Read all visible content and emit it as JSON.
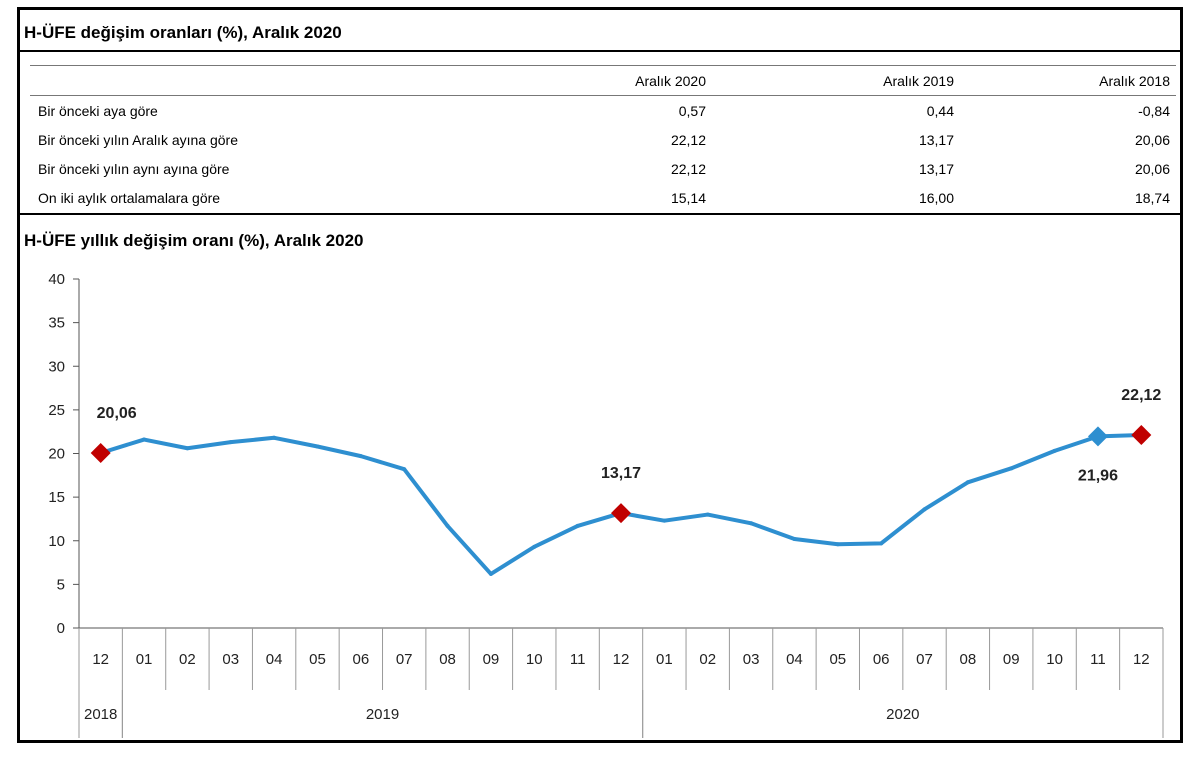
{
  "table": {
    "title": "H-ÜFE değişim oranları (%), Aralık 2020",
    "columns": [
      "Aralık 2020",
      "Aralık 2019",
      "Aralık 2018"
    ],
    "rows": [
      {
        "label": "Bir önceki aya göre",
        "values": [
          "0,57",
          "0,44",
          "-0,84"
        ]
      },
      {
        "label": "Bir önceki yılın Aralık ayına göre",
        "values": [
          "22,12",
          "13,17",
          "20,06"
        ]
      },
      {
        "label": "Bir önceki yılın aynı ayına göre",
        "values": [
          "22,12",
          "13,17",
          "20,06"
        ]
      },
      {
        "label": "On iki aylık ortalamalara göre",
        "values": [
          "15,14",
          "16,00",
          "18,74"
        ]
      }
    ]
  },
  "chart_data": {
    "type": "line",
    "title": "H-ÜFE yıllık değişim oranı (%), Aralık 2020",
    "ylim": [
      0,
      40
    ],
    "yticks": [
      0,
      5,
      10,
      15,
      20,
      25,
      30,
      35,
      40
    ],
    "categories": [
      "12",
      "01",
      "02",
      "03",
      "04",
      "05",
      "06",
      "07",
      "08",
      "09",
      "10",
      "11",
      "12",
      "01",
      "02",
      "03",
      "04",
      "05",
      "06",
      "07",
      "08",
      "09",
      "10",
      "11",
      "12"
    ],
    "year_groups": [
      {
        "label": "2018",
        "start": 0,
        "end": 0
      },
      {
        "label": "2019",
        "start": 1,
        "end": 12
      },
      {
        "label": "2020",
        "start": 13,
        "end": 24
      }
    ],
    "series": [
      {
        "values": [
          20.06,
          21.6,
          20.6,
          21.3,
          21.8,
          20.8,
          19.7,
          18.2,
          11.7,
          6.2,
          9.3,
          11.7,
          13.17,
          12.3,
          13.0,
          12.0,
          10.2,
          9.6,
          9.7,
          13.6,
          16.7,
          18.3,
          20.3,
          21.96,
          22.12
        ]
      }
    ],
    "markers": [
      {
        "index": 0,
        "label": "20,06",
        "color": "#c00000",
        "label_pos": "above"
      },
      {
        "index": 12,
        "label": "13,17",
        "color": "#c00000",
        "label_pos": "above"
      },
      {
        "index": 23,
        "label": "21,96",
        "color": "#2e8fd0",
        "label_pos": "below"
      },
      {
        "index": 24,
        "label": "22,12",
        "color": "#c00000",
        "label_pos": "above"
      }
    ],
    "line_color": "#2e8fd0",
    "grid": false
  }
}
